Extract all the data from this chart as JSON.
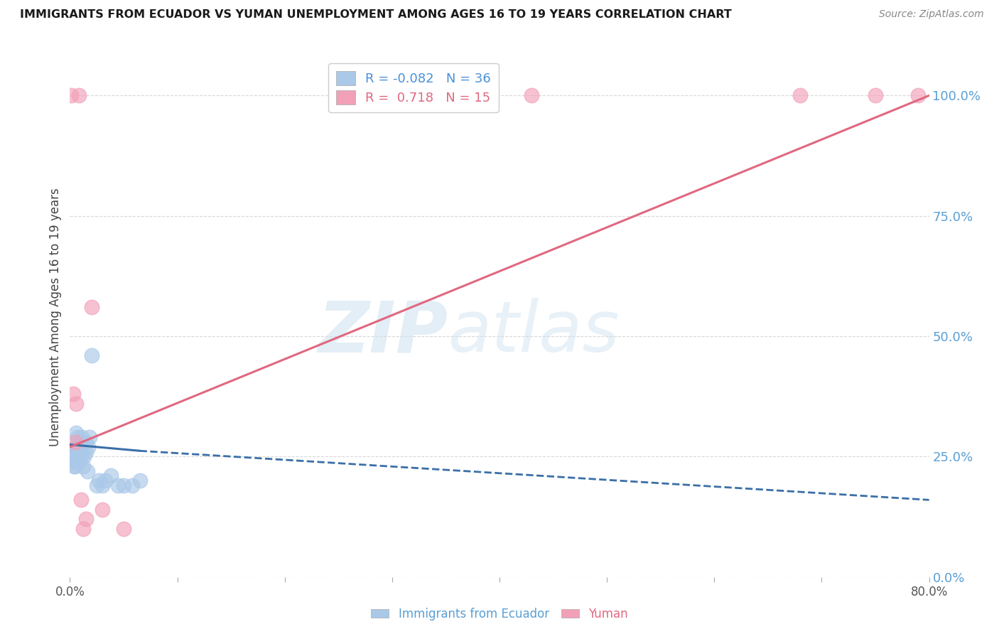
{
  "title": "IMMIGRANTS FROM ECUADOR VS YUMAN UNEMPLOYMENT AMONG AGES 16 TO 19 YEARS CORRELATION CHART",
  "source": "Source: ZipAtlas.com",
  "ylabel": "Unemployment Among Ages 16 to 19 years",
  "watermark_part1": "ZIP",
  "watermark_part2": "atlas",
  "legend_blue_label": "Immigrants from Ecuador",
  "legend_pink_label": "Yuman",
  "blue_R": -0.082,
  "blue_N": 36,
  "pink_R": 0.718,
  "pink_N": 15,
  "blue_color": "#aac8e8",
  "pink_color": "#f2a0b8",
  "blue_line_color": "#3a6fa8",
  "pink_line_color": "#e06880",
  "right_ytick_color": "#5a9fd4",
  "xlim": [
    0.0,
    0.8
  ],
  "ylim": [
    0.0,
    1.08
  ],
  "blue_scatter_x": [
    0.001,
    0.002,
    0.003,
    0.003,
    0.004,
    0.005,
    0.005,
    0.005,
    0.006,
    0.006,
    0.007,
    0.007,
    0.007,
    0.008,
    0.008,
    0.009,
    0.01,
    0.01,
    0.011,
    0.012,
    0.013,
    0.015,
    0.015,
    0.016,
    0.017,
    0.018,
    0.02,
    0.025,
    0.027,
    0.03,
    0.033,
    0.038,
    0.045,
    0.05,
    0.058,
    0.065
  ],
  "blue_scatter_y": [
    0.24,
    0.25,
    0.26,
    0.24,
    0.23,
    0.27,
    0.25,
    0.23,
    0.3,
    0.27,
    0.29,
    0.25,
    0.26,
    0.26,
    0.24,
    0.27,
    0.28,
    0.25,
    0.29,
    0.23,
    0.25,
    0.26,
    0.28,
    0.22,
    0.27,
    0.29,
    0.46,
    0.19,
    0.2,
    0.19,
    0.2,
    0.21,
    0.19,
    0.19,
    0.19,
    0.2
  ],
  "pink_scatter_x": [
    0.001,
    0.003,
    0.005,
    0.006,
    0.008,
    0.01,
    0.012,
    0.015,
    0.02,
    0.03,
    0.05,
    0.43,
    0.68,
    0.75,
    0.79
  ],
  "pink_scatter_y": [
    1.0,
    0.38,
    0.28,
    0.36,
    1.0,
    0.16,
    0.1,
    0.12,
    0.56,
    0.14,
    0.1,
    1.0,
    1.0,
    1.0,
    1.0
  ],
  "blue_line_x0": 0.0,
  "blue_line_x1": 0.065,
  "blue_line_x2": 0.8,
  "blue_line_y0": 0.275,
  "blue_line_y1": 0.262,
  "blue_line_y2": 0.16,
  "pink_line_x0": 0.0,
  "pink_line_x1": 0.8,
  "pink_line_y0": 0.27,
  "pink_line_y1": 1.0,
  "right_yticks_pct": [
    0.0,
    25.0,
    50.0,
    75.0,
    100.0
  ],
  "grid_color": "#d8d8d8",
  "xtick_positions": [
    0.0,
    0.1,
    0.2,
    0.3,
    0.4,
    0.5,
    0.6,
    0.7,
    0.8
  ]
}
